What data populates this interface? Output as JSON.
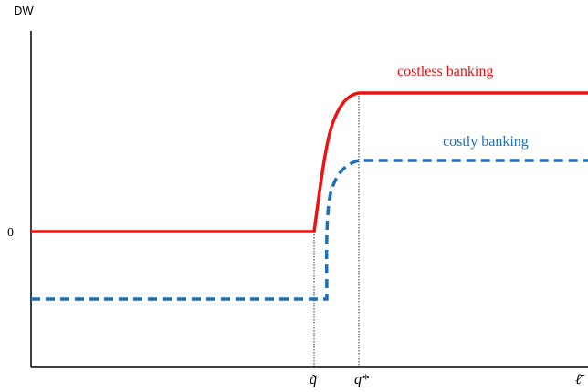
{
  "chart_data": {
    "type": "line",
    "ylabel": "DW",
    "y_tick_labels": [
      "0"
    ],
    "x_tick_labels": [
      "q̃",
      "q*",
      "ℓ̄"
    ],
    "series": [
      {
        "name": "costless banking",
        "color": "#ee1111",
        "style": "solid",
        "description_points": [
          [
            0,
            0
          ],
          [
            0.755,
            0
          ],
          [
            0.85,
            0.94
          ],
          [
            1.0,
            0.94
          ]
        ]
      },
      {
        "name": "costly banking",
        "color": "#1f6fb8",
        "style": "dashed",
        "description_points": [
          [
            0,
            -0.45
          ],
          [
            0.78,
            -0.45
          ],
          [
            0.85,
            0.48
          ],
          [
            1.0,
            0.48
          ]
        ]
      }
    ],
    "grid": false
  }
}
